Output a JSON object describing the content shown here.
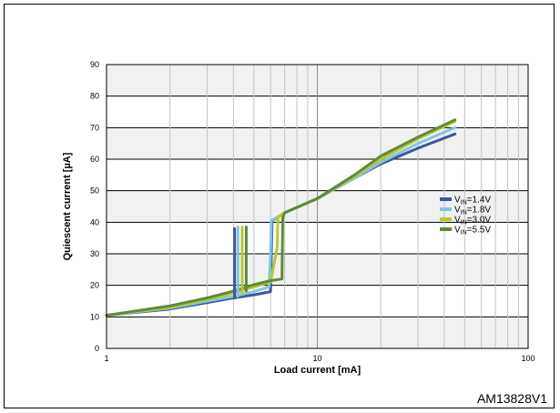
{
  "figure_id": "AM13828V1",
  "chart_data": {
    "type": "line",
    "title": "",
    "xlabel": "Load current [mA]",
    "ylabel": "Quiescent current [µA]",
    "x_scale": "log",
    "xlim": [
      1,
      100
    ],
    "ylim": [
      0,
      90
    ],
    "x_ticks": [
      1,
      10,
      100
    ],
    "y_ticks": [
      0,
      10,
      20,
      30,
      40,
      50,
      60,
      70,
      80,
      90
    ],
    "grid": true,
    "legend_position": "right",
    "series": [
      {
        "name": "VIN=1.4V",
        "label_main": "V",
        "label_sub": "IN",
        "label_rest": "=1.4V",
        "color": "#3b56a3",
        "x": [
          1,
          2,
          3,
          4,
          5,
          6,
          6.05,
          6.1,
          7,
          10,
          15,
          20,
          30,
          45
        ],
        "y": [
          10.5,
          12.5,
          14.5,
          16,
          17,
          18,
          30,
          40.5,
          43,
          47.5,
          54,
          58.5,
          63.5,
          68
        ]
      },
      {
        "name": "VIN=1.8V",
        "label_main": "V",
        "label_sub": "IN",
        "label_rest": "=1.8V",
        "color": "#7fc6e6",
        "x": [
          1,
          2,
          3,
          4,
          5,
          5.9,
          6,
          6.05,
          7,
          10,
          15,
          20,
          30,
          45
        ],
        "y": [
          10.5,
          12.8,
          15,
          16.5,
          18,
          19.5,
          30,
          40.5,
          43,
          47.5,
          54,
          59,
          65,
          70
        ]
      },
      {
        "name": "VIN=3.0V",
        "label_main": "V",
        "label_sub": "IN",
        "label_rest": "=3.0V",
        "color": "#b8c92c",
        "x": [
          1,
          2,
          3,
          4,
          5,
          6,
          6.45,
          6.5,
          7,
          10,
          15,
          20,
          30,
          45
        ],
        "y": [
          10.5,
          13,
          15.5,
          17.5,
          19.5,
          21,
          32,
          41.5,
          43,
          47.5,
          54.5,
          60,
          66.5,
          72
        ]
      },
      {
        "name": "VIN=5.5V",
        "label_main": "V",
        "label_sub": "IN",
        "label_rest": "=5.5V",
        "color": "#5e8a3a",
        "x": [
          1,
          2,
          3,
          4,
          5,
          6,
          6.8,
          6.85,
          7,
          10,
          15,
          20,
          30,
          45
        ],
        "y": [
          10.5,
          13.5,
          16,
          18.2,
          20.2,
          21.5,
          22,
          41.5,
          43,
          47.5,
          55,
          61,
          67,
          72.5
        ]
      }
    ],
    "hysteresis_up": [
      {
        "x": 4.05,
        "y": [
          16,
          38
        ]
      },
      {
        "x": 4.2,
        "y": [
          16.5,
          38.5
        ]
      },
      {
        "x": 4.4,
        "y": [
          17.5,
          38.5
        ]
      },
      {
        "x": 4.6,
        "y": [
          18.2,
          38.5
        ]
      }
    ]
  }
}
